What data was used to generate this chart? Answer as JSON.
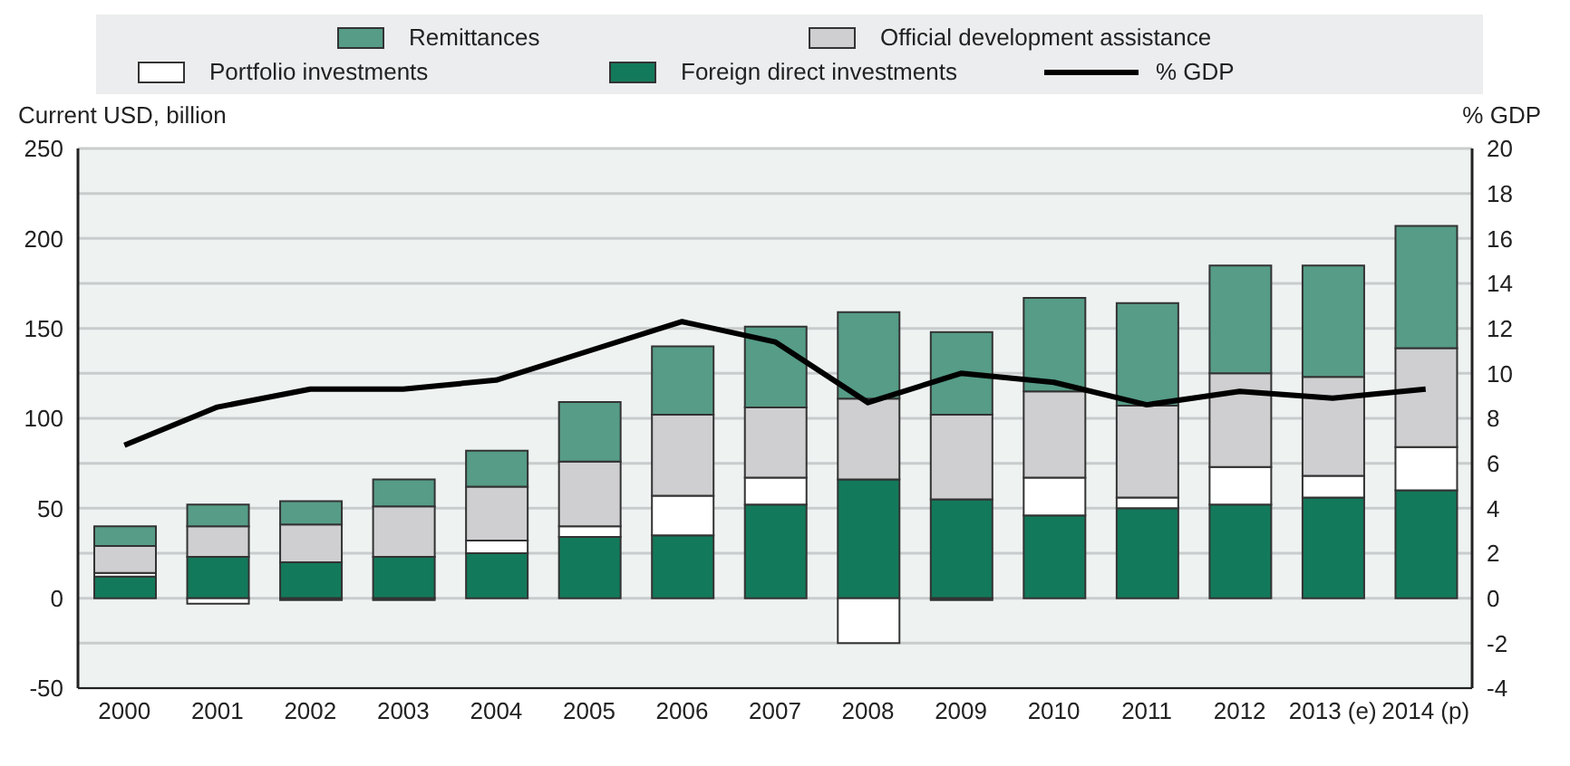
{
  "chart_data": {
    "type": "bar",
    "stacked": true,
    "categories": [
      "2000",
      "2001",
      "2002",
      "2003",
      "2004",
      "2005",
      "2006",
      "2007",
      "2008",
      "2009",
      "2010",
      "2011",
      "2012",
      "2013 (e)",
      "2014 (p)"
    ],
    "ylabel": "Current USD, billion",
    "y2label": "% GDP",
    "ylim": [
      -50,
      250
    ],
    "yticks": [
      -50,
      0,
      50,
      100,
      150,
      200,
      250
    ],
    "y2lim": [
      -4,
      20
    ],
    "y2ticks": [
      -4,
      -2,
      0,
      2,
      4,
      6,
      8,
      10,
      12,
      14,
      16,
      18,
      20
    ],
    "grid": "y",
    "legend": "top",
    "series": [
      {
        "name": "Foreign direct investments",
        "color": "#13795b",
        "values": [
          12,
          23,
          20,
          23,
          25,
          34,
          35,
          52,
          66,
          55,
          46,
          50,
          52,
          56,
          60
        ]
      },
      {
        "name": "Portfolio investments",
        "color": "#ffffff",
        "values": [
          2,
          -3,
          -1,
          -1,
          7,
          6,
          22,
          15,
          -25,
          -1,
          21,
          6,
          21,
          12,
          24
        ]
      },
      {
        "name": "Official development assistance",
        "color": "#cfcfd1",
        "values": [
          15,
          17,
          21,
          28,
          30,
          36,
          45,
          39,
          45,
          47,
          48,
          51,
          52,
          55,
          55
        ]
      },
      {
        "name": "Remittances",
        "color": "#569c87",
        "values": [
          11,
          12,
          13,
          15,
          20,
          33,
          38,
          45,
          48,
          46,
          52,
          57,
          60,
          62,
          68
        ]
      },
      {
        "name": "% GDP",
        "type": "line",
        "axis": "y2",
        "color": "#000000",
        "values": [
          6.8,
          8.5,
          9.3,
          9.3,
          9.7,
          11.0,
          12.3,
          11.4,
          8.7,
          10.0,
          9.6,
          8.6,
          9.2,
          8.9,
          9.3
        ]
      }
    ]
  }
}
